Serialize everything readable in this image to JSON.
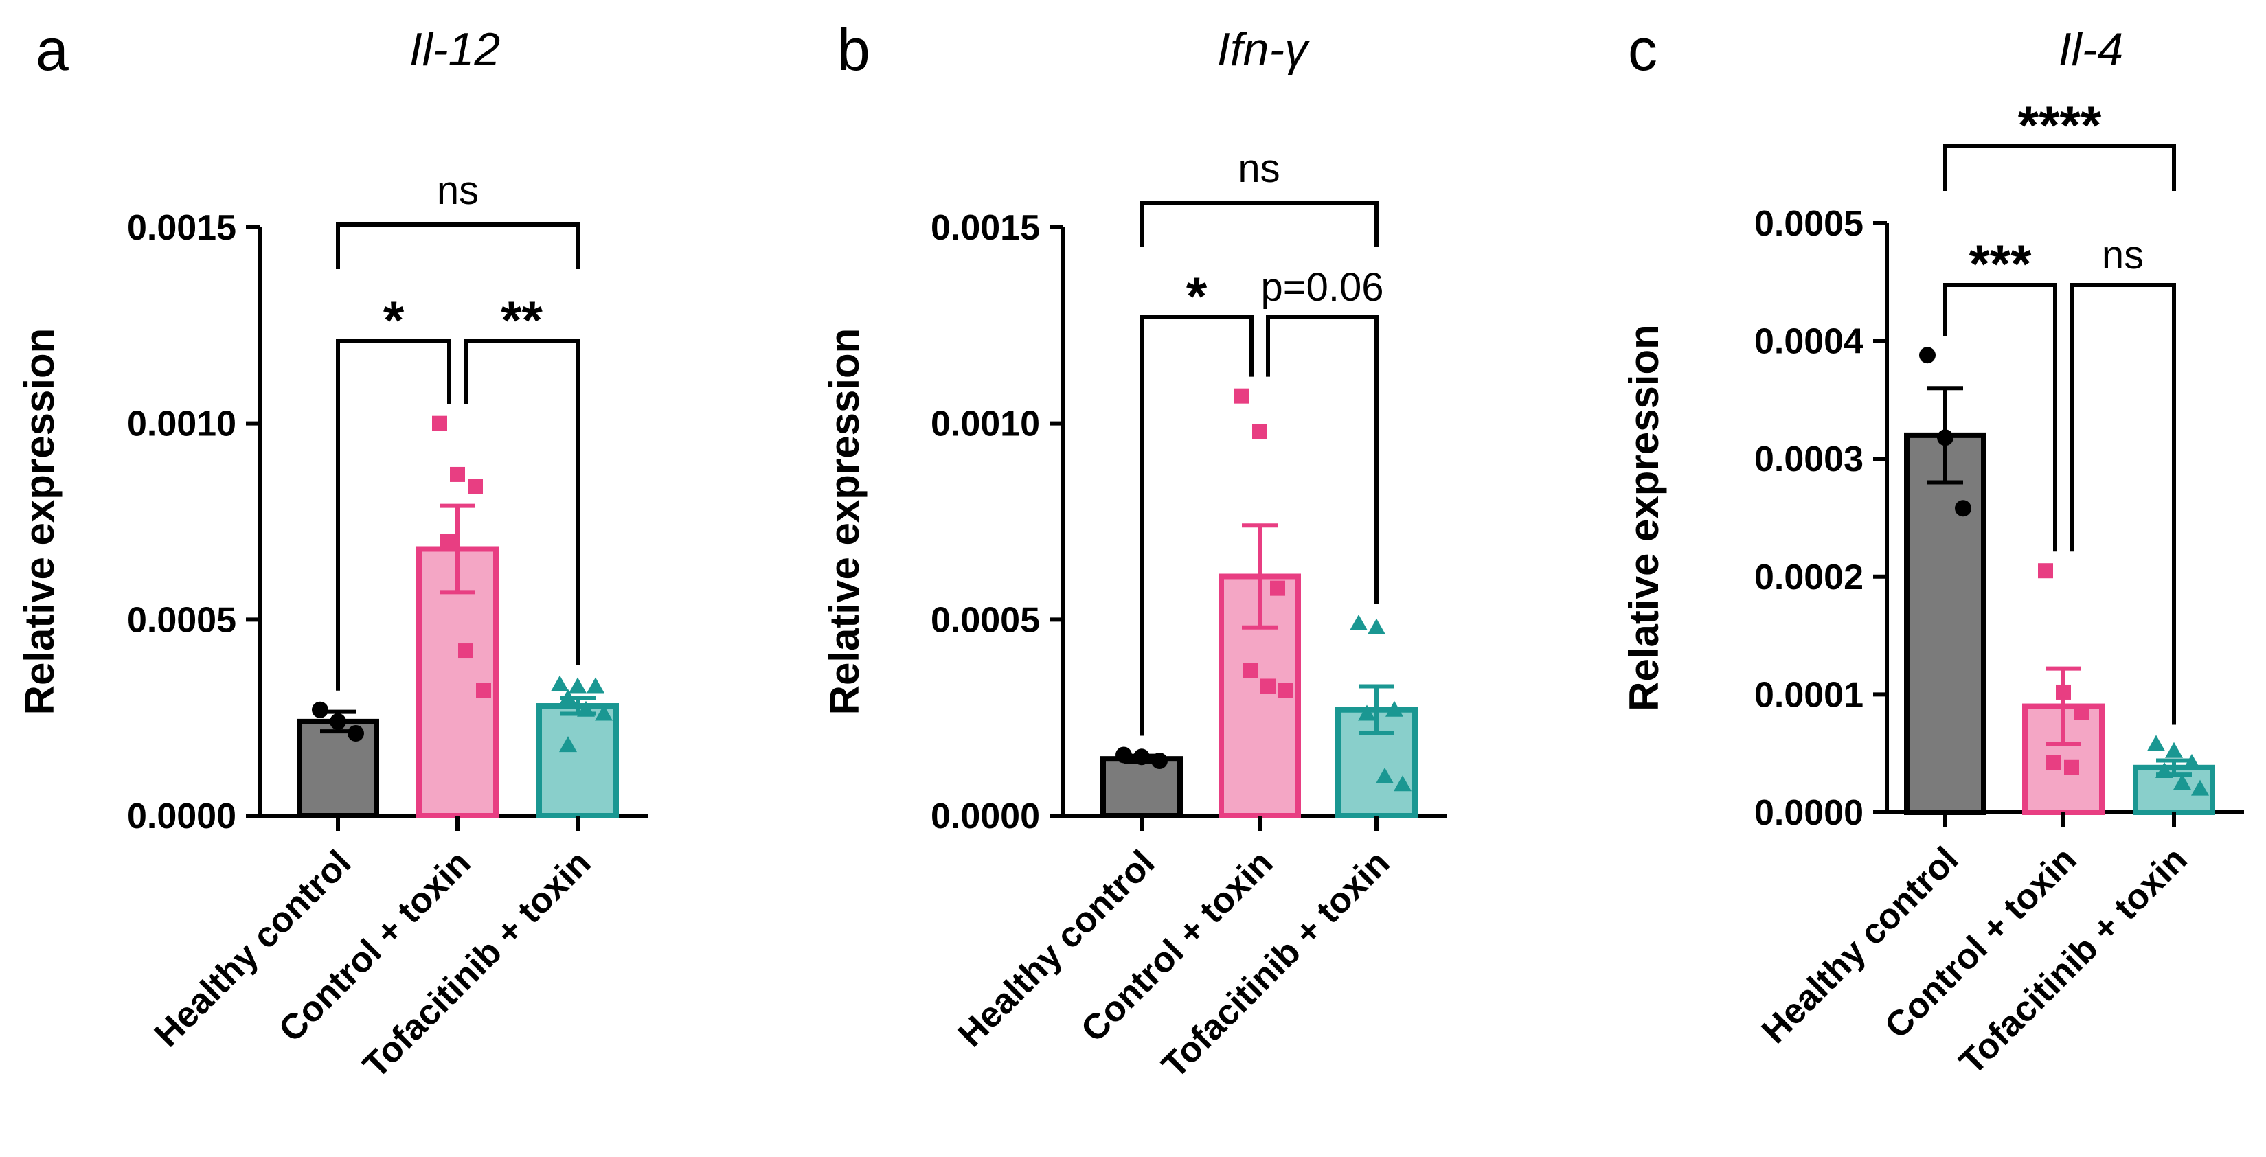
{
  "chart_data": [
    {
      "type": "bar",
      "panel": "a",
      "title": "Il-12",
      "ylabel": "Relative expression",
      "xlabel": "",
      "ylim": [
        0,
        0.0015
      ],
      "yticks": [
        0,
        0.0005,
        0.001,
        0.0015
      ],
      "ytick_labels": [
        "0.0000",
        "0.0005",
        "0.0010",
        "0.0015"
      ],
      "categories": [
        "Healthy control",
        "Control + toxin",
        "Tofacitinib + toxin"
      ],
      "series": [
        {
          "name": "Healthy control",
          "mean": 0.00024,
          "sem": 2.5e-05,
          "marker": "circle",
          "color": "#7b7b7b",
          "edge": "#000000",
          "points": [
            0.00027,
            0.00024,
            0.00021
          ]
        },
        {
          "name": "Control + toxin",
          "mean": 0.00068,
          "sem": 0.00011,
          "marker": "square",
          "color": "#f4a6c5",
          "edge": "#e83e82",
          "points": [
            0.001,
            0.00087,
            0.00084,
            0.0007,
            0.00042,
            0.00032
          ]
        },
        {
          "name": "Tofacitinib + toxin",
          "mean": 0.00028,
          "sem": 2e-05,
          "marker": "triangle",
          "color": "#89cfcb",
          "edge": "#1a9792",
          "points": [
            0.000335,
            0.00033,
            0.00033,
            0.0003,
            0.00027,
            0.00026,
            0.00018
          ]
        }
      ],
      "significance": [
        {
          "from": 0,
          "to": 2,
          "label": "ns",
          "level": 1
        },
        {
          "from": 0,
          "to": 1,
          "label": "*",
          "level": 0
        },
        {
          "from": 1,
          "to": 2,
          "label": "**",
          "level": 0
        }
      ]
    },
    {
      "type": "bar",
      "panel": "b",
      "title": "Ifn-γ",
      "ylabel": "Relative expression",
      "xlabel": "",
      "ylim": [
        0,
        0.0015
      ],
      "yticks": [
        0,
        0.0005,
        0.001,
        0.0015
      ],
      "ytick_labels": [
        "0.0000",
        "0.0005",
        "0.0010",
        "0.0015"
      ],
      "categories": [
        "Healthy control",
        "Control + toxin",
        "Tofacitinib + toxin"
      ],
      "series": [
        {
          "name": "Healthy control",
          "mean": 0.000145,
          "sem": 8e-06,
          "marker": "circle",
          "color": "#7b7b7b",
          "edge": "#000000",
          "points": [
            0.000155,
            0.00015,
            0.00014
          ]
        },
        {
          "name": "Control + toxin",
          "mean": 0.00061,
          "sem": 0.00013,
          "marker": "square",
          "color": "#f4a6c5",
          "edge": "#e83e82",
          "points": [
            0.00107,
            0.00098,
            0.00058,
            0.00037,
            0.00033,
            0.00032
          ]
        },
        {
          "name": "Tofacitinib + toxin",
          "mean": 0.00027,
          "sem": 6e-05,
          "marker": "triangle",
          "color": "#89cfcb",
          "edge": "#1a9792",
          "points": [
            0.00049,
            0.00048,
            0.00027,
            0.00026,
            0.0001,
            8e-05
          ]
        }
      ],
      "significance": [
        {
          "from": 0,
          "to": 2,
          "label": "ns",
          "level": 1
        },
        {
          "from": 0,
          "to": 1,
          "label": "*",
          "level": 0
        },
        {
          "from": 1,
          "to": 2,
          "label": "p=0.06",
          "level": 0
        }
      ]
    },
    {
      "type": "bar",
      "panel": "c",
      "title": "Il-4",
      "ylabel": "Relative expression",
      "xlabel": "",
      "ylim": [
        0,
        0.0005
      ],
      "yticks": [
        0,
        0.0001,
        0.0002,
        0.0003,
        0.0004,
        0.0005
      ],
      "ytick_labels": [
        "0.0000",
        "0.0001",
        "0.0002",
        "0.0003",
        "0.0004",
        "0.0005"
      ],
      "categories": [
        "Healthy control",
        "Control + toxin",
        "Tofacitinib + toxin"
      ],
      "series": [
        {
          "name": "Healthy control",
          "mean": 0.00032,
          "sem": 4e-05,
          "marker": "circle",
          "color": "#7b7b7b",
          "edge": "#000000",
          "points": [
            0.000388,
            0.000318,
            0.000258
          ]
        },
        {
          "name": "Control + toxin",
          "mean": 9e-05,
          "sem": 3.2e-05,
          "marker": "square",
          "color": "#f4a6c5",
          "edge": "#e83e82",
          "points": [
            0.000205,
            0.000102,
            8.5e-05,
            4.2e-05,
            3.8e-05
          ]
        },
        {
          "name": "Tofacitinib + toxin",
          "mean": 3.8e-05,
          "sem": 6e-06,
          "marker": "triangle",
          "color": "#89cfcb",
          "edge": "#1a9792",
          "points": [
            5.8e-05,
            5.2e-05,
            4.2e-05,
            3.5e-05,
            2.5e-05,
            2e-05
          ]
        }
      ],
      "significance": [
        {
          "from": 0,
          "to": 2,
          "label": "****",
          "level": 2
        },
        {
          "from": 0,
          "to": 1,
          "label": "***",
          "level": 0
        },
        {
          "from": 1,
          "to": 2,
          "label": "ns",
          "level": 0
        }
      ]
    }
  ]
}
